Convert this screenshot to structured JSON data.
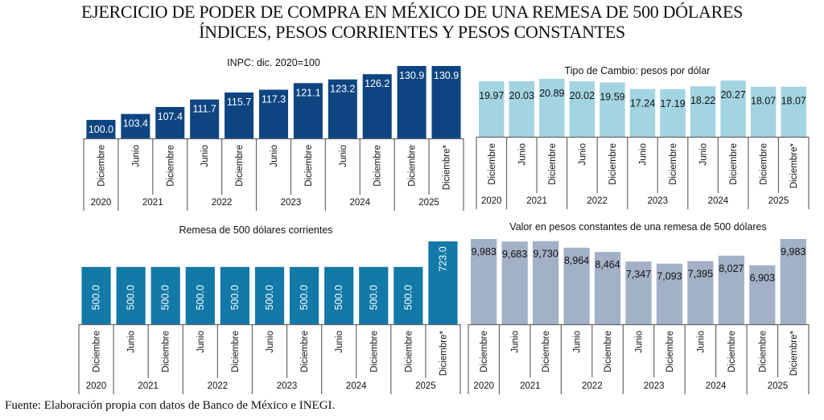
{
  "title": {
    "line1": "EJERCICIO DE PODER DE COMPRA EN MÉXICO DE UNA REMESA DE 500 DÓLARES",
    "line2": "ÍNDICES, PESOS CORRIENTES Y PESOS CONSTANTES"
  },
  "source": "Fuente: Elaboración propia con datos de Banco de México e INEGI.",
  "chart_data": [
    {
      "id": "inpc",
      "type": "bar",
      "title": "INPC: dic. 2020=100",
      "categories": [
        "Diciembre",
        "Junio",
        "Diciembre",
        "Junio",
        "Diciembre",
        "Junio",
        "Diciembre",
        "Junio",
        "Diciembre",
        "Diciembre",
        "Diciembre*"
      ],
      "year_groups": [
        {
          "year": "2020",
          "span": 1
        },
        {
          "year": "2021",
          "span": 2
        },
        {
          "year": "2022",
          "span": 2
        },
        {
          "year": "2023",
          "span": 2
        },
        {
          "year": "2024",
          "span": 2
        },
        {
          "year": "2025",
          "span": 2
        }
      ],
      "values": [
        100.0,
        103.4,
        107.4,
        111.7,
        115.7,
        117.3,
        121.1,
        123.2,
        126.2,
        130.9,
        130.9
      ],
      "labels": [
        "100.0",
        "103.4",
        "107.4",
        "111.7",
        "115.7",
        "117.3",
        "121.1",
        "123.2",
        "126.2",
        "130.9",
        "130.9"
      ],
      "ylim": [
        89.4,
        132
      ],
      "bar_color": "#0e4581",
      "label_color": "#ffffff",
      "label_rotated": false,
      "xlabel": "",
      "ylabel": ""
    },
    {
      "id": "tipo-cambio",
      "type": "bar",
      "title": "Tipo de Cambio: pesos por dólar",
      "categories": [
        "Diciembre",
        "Junio",
        "Diciembre",
        "Junio",
        "Diciembre",
        "Junio",
        "Diciembre",
        "Junio",
        "Diciembre",
        "Diciembre",
        "Diciembre*"
      ],
      "year_groups": [
        {
          "year": "2020",
          "span": 1
        },
        {
          "year": "2021",
          "span": 2
        },
        {
          "year": "2022",
          "span": 2
        },
        {
          "year": "2023",
          "span": 2
        },
        {
          "year": "2024",
          "span": 2
        },
        {
          "year": "2025",
          "span": 2
        }
      ],
      "values": [
        19.97,
        20.03,
        20.89,
        20.02,
        19.59,
        17.24,
        17.19,
        18.22,
        20.27,
        18.07,
        18.07
      ],
      "labels": [
        "19.97",
        "20.03",
        "20.89",
        "20.02",
        "19.59",
        "17.24",
        "17.19",
        "18.22",
        "20.27",
        "18.07",
        "18.07"
      ],
      "ylim": [
        0,
        21.5
      ],
      "bar_color": "#a3d4e2",
      "label_color": "#111111",
      "label_rotated": false,
      "xlabel": "",
      "ylabel": ""
    },
    {
      "id": "remesa-corrientes",
      "type": "bar",
      "title": "Remesa de 500 dólares corrientes",
      "categories": [
        "Diciembre",
        "Junio",
        "Diciembre",
        "Junio",
        "Diciembre",
        "Junio",
        "Diciembre",
        "Junio",
        "Diciembre",
        "Diciembre",
        "Diciembre*"
      ],
      "year_groups": [
        {
          "year": "2020",
          "span": 1
        },
        {
          "year": "2021",
          "span": 2
        },
        {
          "year": "2022",
          "span": 2
        },
        {
          "year": "2023",
          "span": 2
        },
        {
          "year": "2024",
          "span": 2
        },
        {
          "year": "2025",
          "span": 2
        }
      ],
      "values": [
        500.0,
        500.0,
        500.0,
        500.0,
        500.0,
        500.0,
        500.0,
        500.0,
        500.0,
        500.0,
        723.0
      ],
      "labels": [
        "500.0",
        "500.0",
        "500.0",
        "500.0",
        "500.0",
        "500.0",
        "500.0",
        "500.0",
        "500.0",
        "500.0",
        "723.0"
      ],
      "ylim": [
        0,
        735
      ],
      "bar_color": "#1279a8",
      "label_color": "#ffffff",
      "label_rotated": true,
      "xlabel": "",
      "ylabel": ""
    },
    {
      "id": "valor-constantes",
      "type": "bar",
      "title": "Valor en pesos constantes de una remesa de 500 dólares",
      "categories": [
        "Diciembre",
        "Junio",
        "Diciembre",
        "Junio",
        "Diciembre",
        "Junio",
        "Diciembre",
        "Junio",
        "Diciembre",
        "Diciembre",
        "Diciembre*"
      ],
      "year_groups": [
        {
          "year": "2020",
          "span": 1
        },
        {
          "year": "2021",
          "span": 2
        },
        {
          "year": "2022",
          "span": 2
        },
        {
          "year": "2023",
          "span": 2
        },
        {
          "year": "2024",
          "span": 2
        },
        {
          "year": "2025",
          "span": 2
        }
      ],
      "values": [
        9983,
        9683,
        9730,
        8964,
        8464,
        7347,
        7093,
        7395,
        8027,
        6903,
        9983
      ],
      "labels": [
        "9,983",
        "9,683",
        "9,730",
        "8,964",
        "8,464",
        "7,347",
        "7,093",
        "7,395",
        "8,027",
        "6,903",
        "9,983"
      ],
      "ylim": [
        0,
        10100
      ],
      "bar_color": "#a2b1c6",
      "label_color": "#111111",
      "label_rotated": false,
      "xlabel": "",
      "ylabel": ""
    }
  ]
}
